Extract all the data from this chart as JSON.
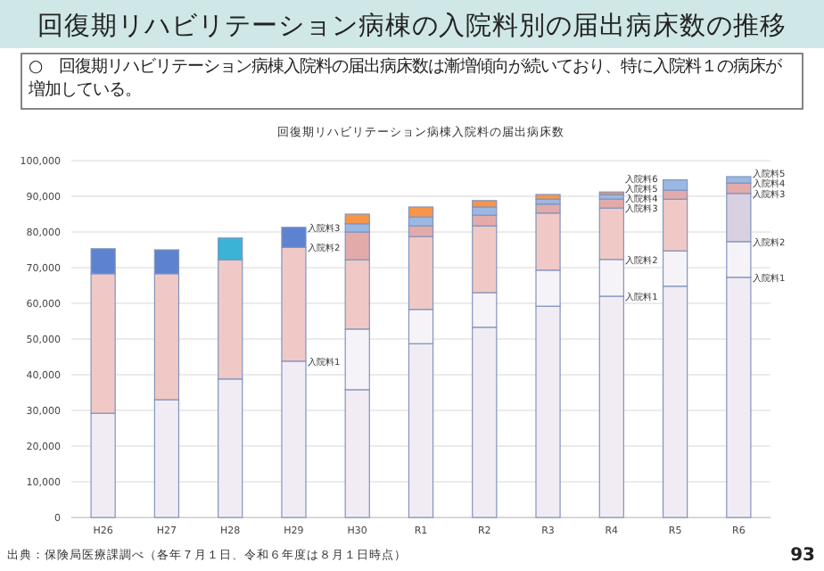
{
  "chart_data": {
    "type": "bar",
    "stacked": true,
    "title": "回復期リハビリテーション病棟の入院料別の届出病床数の推移",
    "subtitle": "○　回復期リハビリテーション病棟入院料の届出病床数は漸増傾向が続いており、特に入院料１の病床が増加している。",
    "categories": [
      "H26",
      "H27",
      "H28",
      "H29",
      "H30",
      "R1",
      "R2",
      "R3",
      "R4",
      "R5",
      "R6"
    ],
    "series": [
      {
        "color": "#f1ecf4",
        "values": [
          29200,
          33000,
          38800,
          43800,
          35800,
          48700,
          53300,
          59200,
          62000,
          64800,
          67300
        ]
      },
      {
        "color": "#f6f3f8",
        "values": [
          null,
          null,
          null,
          null,
          17000,
          9600,
          9700,
          10100,
          10300,
          9900,
          10000
        ]
      },
      {
        "colors": [
          "#f0c9c6",
          "#f0c9c6",
          "#f0c9c6",
          "#f0c9c6",
          "#f0c9c6",
          "#f0c9c6",
          "#f0c9c6",
          "#f0c9c6",
          "#f0c9c6",
          "#f0c9c6",
          "#d9d0e2"
        ],
        "values": [
          39100,
          35300,
          33400,
          31900,
          19400,
          20400,
          18700,
          16000,
          14400,
          14500,
          13500
        ]
      },
      {
        "color": "#e2abaa",
        "values": [
          null,
          null,
          null,
          null,
          7800,
          3000,
          3000,
          2500,
          2500,
          2500,
          2900
        ]
      },
      {
        "colors": [
          "#5d82cf",
          "#5d82cf",
          "#3bb3d6",
          "#5d82cf",
          "#9bb8e3",
          "#9bb8e3",
          "#9bb8e3",
          "#9bb8e3",
          "#9bb8e3",
          "#9bb8e3",
          "#9bb8e3"
        ],
        "values": [
          7000,
          6700,
          6100,
          5600,
          2300,
          2500,
          2300,
          1400,
          1300,
          2900,
          1800
        ]
      },
      {
        "color": "#f7954a",
        "values": [
          null,
          null,
          null,
          null,
          2700,
          2800,
          1800,
          1300,
          700,
          null,
          null
        ]
      }
    ],
    "ylim": [
      0,
      100000
    ],
    "yticks": [
      0,
      {
        "value": 10000,
        "label": "10,000"
      },
      {
        "value": 20000,
        "label": "20,000"
      },
      {
        "value": 30000,
        "label": "30,000"
      },
      {
        "value": 40000,
        "label": "40,000"
      },
      {
        "value": 50000,
        "label": "50,000"
      },
      {
        "value": 60000,
        "label": "60,000"
      },
      {
        "value": 70000,
        "label": "70,000"
      },
      {
        "value": 80000,
        "label": "80,000"
      },
      {
        "value": 90000,
        "label": "90,000"
      },
      {
        "value": 100000,
        "label": "100,000"
      }
    ],
    "grid": "y",
    "annotations": [
      "回復期リハビリテーション病棟入院料の届出病床数",
      "出典：保険局医療課調べ（各年７月１日、令和６年度は８月１日時点）",
      "93",
      {
        "text": "入院料3",
        "x": "H29",
        "y": 81300
      },
      {
        "text": "入院料2",
        "x": "H29",
        "y": 75700
      },
      {
        "text": "入院料1",
        "x": "H29",
        "y": 43800
      },
      {
        "text": "入院料6",
        "x": "R4",
        "y": 91200
      },
      {
        "text": "入院料5",
        "x": "R4",
        "y": 90500
      },
      {
        "text": "入院料4",
        "x": "R4",
        "y": 89200
      },
      {
        "text": "入院料3",
        "x": "R4",
        "y": 86700
      },
      {
        "text": "入院料2",
        "x": "R4",
        "y": 72300
      },
      {
        "text": "入院料1",
        "x": "R4",
        "y": 62000
      },
      {
        "text": "入院料5",
        "x": "R6",
        "y": 95500
      },
      {
        "text": "入院料4",
        "x": "R6",
        "y": 93700
      },
      {
        "text": "入院料3",
        "x": "R6",
        "y": 90800
      },
      {
        "text": "入院料2",
        "x": "R6",
        "y": 77300
      },
      {
        "text": "入院料1",
        "x": "R6",
        "y": 67300
      }
    ]
  }
}
